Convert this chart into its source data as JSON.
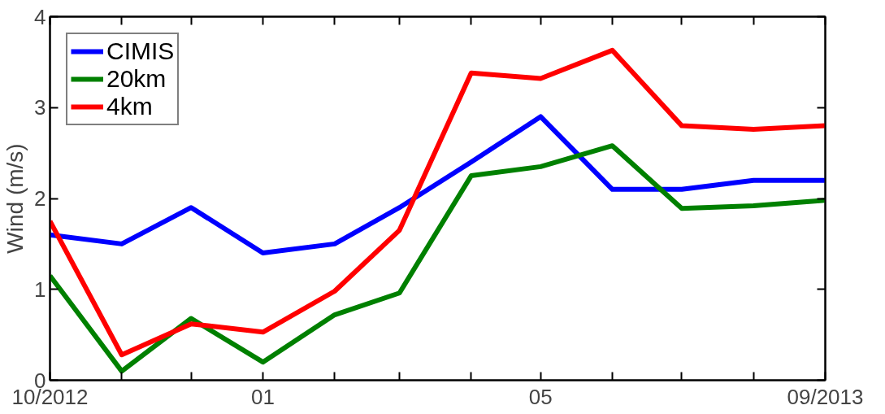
{
  "chart_data": {
    "type": "line",
    "ylabel": "Wind (m/s)",
    "x": [
      "2012-10",
      "2012-11",
      "2012-12",
      "2013-01",
      "2013-02",
      "2013-03",
      "2013-04",
      "2013-05",
      "2013-06",
      "2013-07",
      "2013-08",
      "2013-09"
    ],
    "series": [
      {
        "name": "CIMIS",
        "color": "#0000ff",
        "values": [
          1.6,
          1.5,
          1.9,
          1.4,
          1.5,
          1.9,
          2.4,
          2.9,
          2.1,
          2.1,
          2.2,
          2.2
        ]
      },
      {
        "name": "20km",
        "color": "#008000",
        "values": [
          1.15,
          0.1,
          0.68,
          0.2,
          0.72,
          0.96,
          2.25,
          2.35,
          2.58,
          1.89,
          1.92,
          1.98
        ]
      },
      {
        "name": "4km",
        "color": "#ff0000",
        "values": [
          1.75,
          0.28,
          0.62,
          0.53,
          0.98,
          1.65,
          3.38,
          3.32,
          3.63,
          2.8,
          2.76,
          2.8
        ]
      }
    ],
    "xlim": [
      "2012-10",
      "2013-09"
    ],
    "xticks": [
      {
        "value": "2012-10",
        "label": "10/2012"
      },
      {
        "value": "2012-11",
        "label": null
      },
      {
        "value": "2012-12",
        "label": null
      },
      {
        "value": "2013-01",
        "label": "01"
      },
      {
        "value": "2013-02",
        "label": null
      },
      {
        "value": "2013-03",
        "label": null
      },
      {
        "value": "2013-04",
        "label": null
      },
      {
        "value": "2013-05",
        "label": "05"
      },
      {
        "value": "2013-06",
        "label": null
      },
      {
        "value": "2013-07",
        "label": null
      },
      {
        "value": "2013-08",
        "label": null
      },
      {
        "value": "2013-09",
        "label": "09/2013"
      }
    ],
    "ylim": [
      0,
      4
    ],
    "yticks": [
      0,
      1,
      2,
      3,
      4
    ],
    "grid": false,
    "legend": "top left",
    "marker": "none",
    "line_style": "solid"
  }
}
